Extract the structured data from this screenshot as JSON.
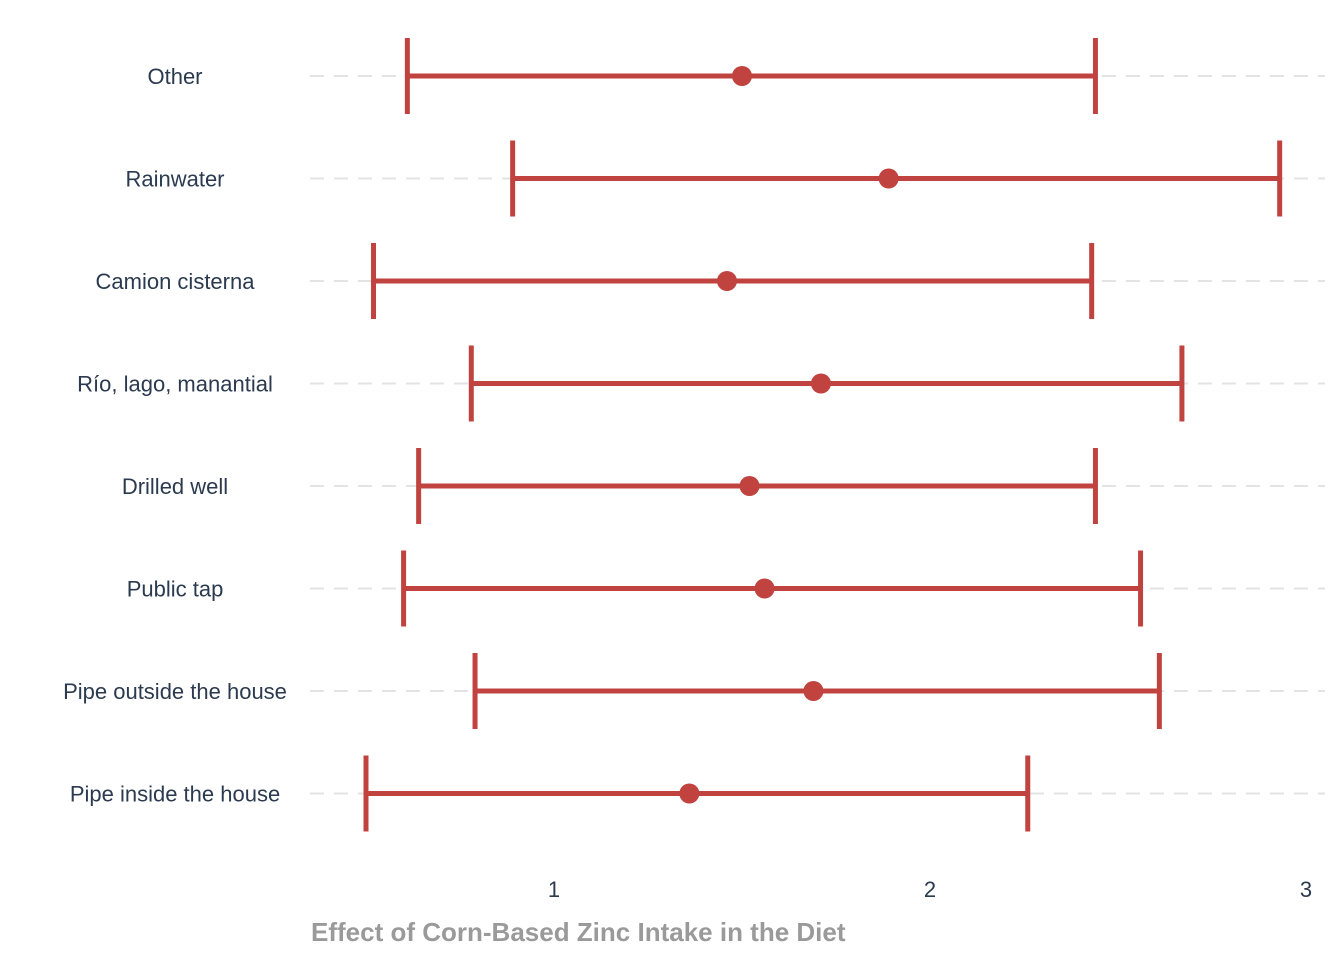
{
  "chart_data": {
    "type": "errorbar",
    "orientation": "horizontal",
    "title": "",
    "xlabel": "Effect of Corn-Based Zinc Intake in the Diet",
    "ylabel": "",
    "xlim": [
      0.35,
      3.0
    ],
    "xticks": [
      1,
      2,
      3
    ],
    "grid": "horizontal-dashed",
    "legend": "none",
    "series_color": "#c0433f",
    "categories": [
      "Other",
      "Rainwater",
      "Camion cisterna",
      "Río, lago, manantial",
      "Drilled well",
      "Public tap",
      "Pipe outside the house",
      "Pipe inside the house"
    ],
    "estimate": [
      1.5,
      1.89,
      1.46,
      1.71,
      1.52,
      1.56,
      1.69,
      1.36
    ],
    "lower": [
      0.61,
      0.89,
      0.52,
      0.78,
      0.64,
      0.6,
      0.79,
      0.5
    ],
    "upper": [
      2.44,
      2.93,
      2.43,
      2.67,
      2.44,
      2.56,
      2.61,
      2.26
    ]
  }
}
